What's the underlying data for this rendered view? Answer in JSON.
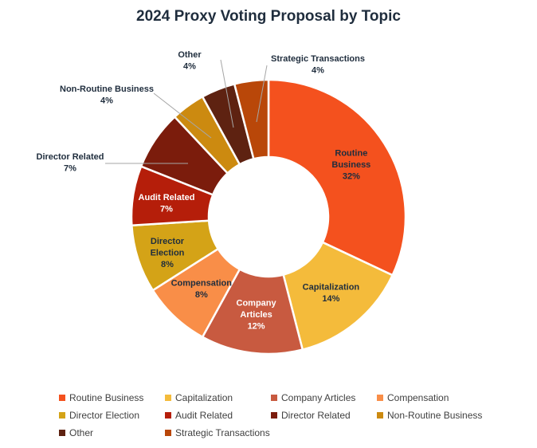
{
  "chart_data": {
    "type": "pie",
    "style": "donut",
    "title": "2024 Proxy Voting Proposal by Topic",
    "legend_position": "bottom",
    "categories": [
      "Routine Business",
      "Capitalization",
      "Company Articles",
      "Compensation",
      "Director Election",
      "Audit Related",
      "Director Related",
      "Non-Routine Business",
      "Other",
      "Strategic Transactions"
    ],
    "values": [
      32,
      14,
      12,
      8,
      8,
      7,
      7,
      4,
      4,
      4
    ],
    "value_labels": [
      "32%",
      "14%",
      "12%",
      "8%",
      "8%",
      "7%",
      "7%",
      "4%",
      "4%",
      "4%"
    ],
    "slice_labels": [
      [
        "Routine",
        "Business"
      ],
      [
        "Capitalization"
      ],
      [
        "Company",
        "Articles"
      ],
      [
        "Compensation"
      ],
      [
        "Director",
        "Election"
      ],
      [
        "Audit Related"
      ],
      [
        "Director Related"
      ],
      [
        "Non-Routine Business"
      ],
      [
        "Other"
      ],
      [
        "Strategic Transactions"
      ]
    ],
    "colors": [
      "#F4511E",
      "#F4BB3B",
      "#C85A40",
      "#F98E48",
      "#D4A317",
      "#B51E0A",
      "#7B1C0C",
      "#CC8A10",
      "#5E2211",
      "#B94709"
    ]
  }
}
